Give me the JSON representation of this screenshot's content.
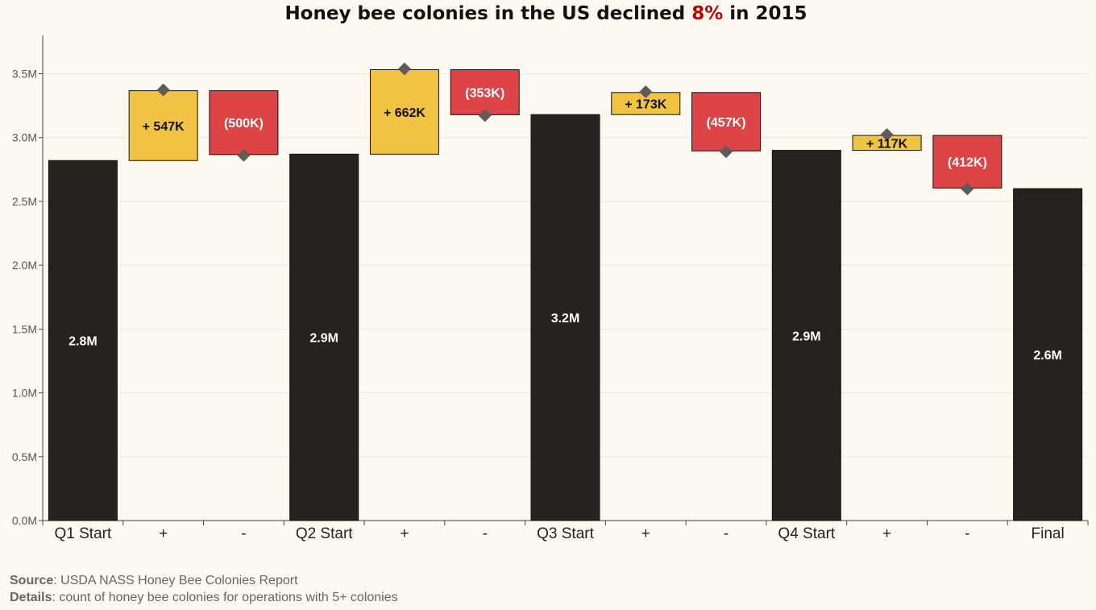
{
  "title": {
    "prefix": "Honey bee colonies in the US declined ",
    "highlight": "8%",
    "suffix": " in 2015",
    "highlight_color": "#c00000"
  },
  "colors": {
    "background": "#fdf8f0",
    "total": "#252220",
    "increase": "#f1c343",
    "decrease": "#dc4445",
    "marker": "#5e5c5a",
    "grid": "#ece6dc"
  },
  "chart_data": {
    "type": "waterfall",
    "title": "Honey bee colonies in the US declined 8% in 2015",
    "xlabel": "",
    "ylabel": "",
    "ylim": [
      0,
      3800000
    ],
    "yticks": [
      0,
      500000,
      1000000,
      1500000,
      2000000,
      2500000,
      3000000,
      3500000
    ],
    "ytick_labels": [
      "0.0M",
      "0.5M",
      "1.0M",
      "1.5M",
      "2.0M",
      "2.5M",
      "3.0M",
      "3.5M"
    ],
    "categories": [
      "Q1 Start",
      "+",
      "-",
      "Q2 Start",
      "+",
      "-",
      "Q3 Start",
      "+",
      "-",
      "Q4 Start",
      "+",
      "-",
      "Final"
    ],
    "bars": [
      {
        "category": "Q1 Start",
        "kind": "total",
        "start": 0,
        "end": 2820000,
        "label": "2.8M"
      },
      {
        "category": "+",
        "kind": "increase",
        "start": 2820000,
        "end": 3367000,
        "label": "+ 547K"
      },
      {
        "category": "-",
        "kind": "decrease",
        "start": 3367000,
        "end": 2867000,
        "label": "(500K)"
      },
      {
        "category": "Q2 Start",
        "kind": "total",
        "start": 0,
        "end": 2870000,
        "label": "2.9M"
      },
      {
        "category": "+",
        "kind": "increase",
        "start": 2870000,
        "end": 3532000,
        "label": "+ 662K"
      },
      {
        "category": "-",
        "kind": "decrease",
        "start": 3532000,
        "end": 3179000,
        "label": "(353K)"
      },
      {
        "category": "Q3 Start",
        "kind": "total",
        "start": 0,
        "end": 3180000,
        "label": "3.2M"
      },
      {
        "category": "+",
        "kind": "increase",
        "start": 3180000,
        "end": 3353000,
        "label": "+ 173K"
      },
      {
        "category": "-",
        "kind": "decrease",
        "start": 3353000,
        "end": 2896000,
        "label": "(457K)"
      },
      {
        "category": "Q4 Start",
        "kind": "total",
        "start": 0,
        "end": 2900000,
        "label": "2.9M"
      },
      {
        "category": "+",
        "kind": "increase",
        "start": 2900000,
        "end": 3017000,
        "label": "+ 117K"
      },
      {
        "category": "-",
        "kind": "decrease",
        "start": 3017000,
        "end": 2605000,
        "label": "(412K)"
      },
      {
        "category": "Final",
        "kind": "total",
        "start": 0,
        "end": 2600000,
        "label": "2.6M"
      }
    ]
  },
  "footer": {
    "source_label": "Source",
    "source_text": ": USDA NASS Honey Bee Colonies Report",
    "details_label": "Details",
    "details_text": ": count of honey bee colonies for operations with 5+ colonies"
  }
}
